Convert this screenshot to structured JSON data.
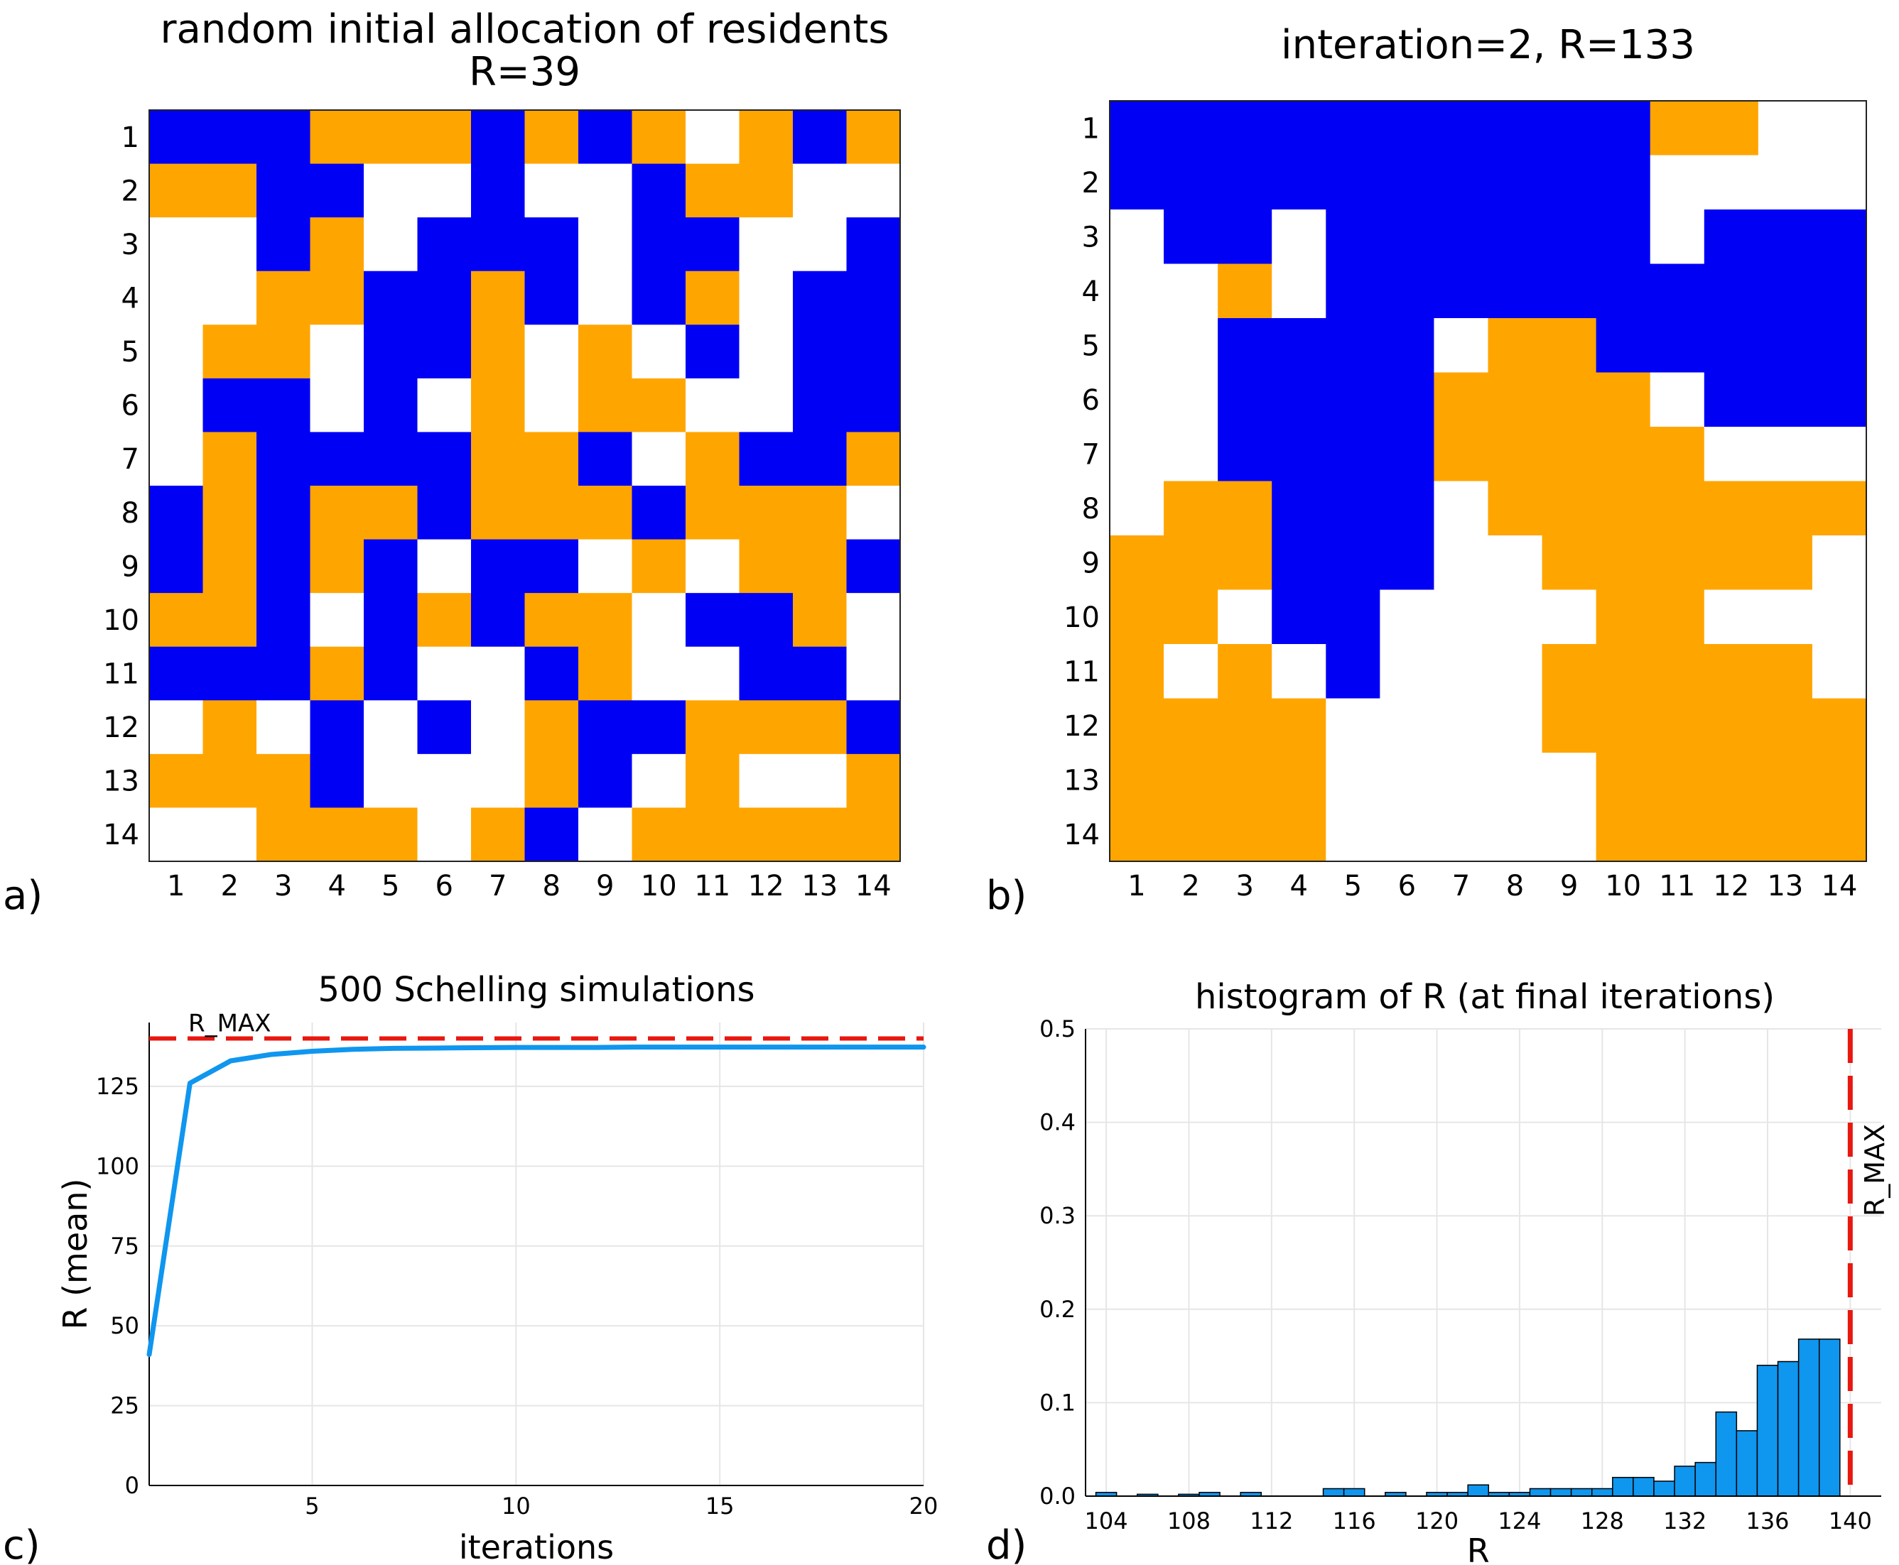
{
  "colors": {
    "empty": "#ffffff",
    "group_a": "#0000f5",
    "group_b": "#ffa500",
    "line": "#0f96ef",
    "rmax": "#e8170f",
    "hist_fill": "#0f96ef",
    "grid": "#e6e6e6"
  },
  "chart_data": [
    {
      "type": "heatmap",
      "panel_label": "a)",
      "title": "random initial allocation of residents",
      "subtitle": "R=39",
      "x_ticks": [
        "1",
        "2",
        "3",
        "4",
        "5",
        "6",
        "7",
        "8",
        "9",
        "10",
        "11",
        "12",
        "13",
        "14"
      ],
      "y_ticks": [
        "1",
        "2",
        "3",
        "4",
        "5",
        "6",
        "7",
        "8",
        "9",
        "10",
        "11",
        "12",
        "13",
        "14"
      ],
      "legend_codes": {
        "0": "empty",
        "1": "blue",
        "2": "orange"
      },
      "grid": [
        [
          1,
          1,
          1,
          2,
          2,
          2,
          1,
          2,
          1,
          2,
          0,
          2,
          1,
          2
        ],
        [
          2,
          2,
          1,
          1,
          0,
          0,
          1,
          0,
          0,
          1,
          2,
          2,
          0,
          0
        ],
        [
          0,
          0,
          1,
          2,
          0,
          1,
          1,
          1,
          0,
          1,
          1,
          0,
          0,
          1
        ],
        [
          0,
          0,
          2,
          2,
          1,
          1,
          2,
          1,
          0,
          1,
          2,
          0,
          1,
          1
        ],
        [
          0,
          2,
          2,
          0,
          1,
          1,
          2,
          0,
          2,
          0,
          1,
          0,
          1,
          1
        ],
        [
          0,
          1,
          1,
          0,
          1,
          0,
          2,
          0,
          2,
          2,
          0,
          0,
          1,
          1
        ],
        [
          0,
          2,
          1,
          1,
          1,
          1,
          2,
          2,
          1,
          0,
          2,
          1,
          1,
          2
        ],
        [
          1,
          2,
          1,
          2,
          2,
          1,
          2,
          2,
          2,
          1,
          2,
          2,
          2,
          0
        ],
        [
          1,
          2,
          1,
          2,
          1,
          0,
          1,
          1,
          0,
          2,
          0,
          2,
          2,
          1
        ],
        [
          2,
          2,
          1,
          0,
          1,
          2,
          1,
          2,
          2,
          0,
          1,
          1,
          2,
          0
        ],
        [
          1,
          1,
          1,
          2,
          1,
          0,
          0,
          1,
          2,
          0,
          0,
          1,
          1,
          0
        ],
        [
          0,
          2,
          0,
          1,
          0,
          1,
          0,
          2,
          1,
          1,
          2,
          2,
          2,
          1
        ],
        [
          2,
          2,
          2,
          1,
          0,
          0,
          0,
          2,
          1,
          0,
          2,
          0,
          0,
          2
        ],
        [
          0,
          0,
          2,
          2,
          2,
          0,
          2,
          1,
          0,
          2,
          2,
          2,
          2,
          2
        ]
      ]
    },
    {
      "type": "heatmap",
      "panel_label": "b)",
      "title": "interation=2, R=133",
      "x_ticks": [
        "1",
        "2",
        "3",
        "4",
        "5",
        "6",
        "7",
        "8",
        "9",
        "10",
        "11",
        "12",
        "13",
        "14"
      ],
      "y_ticks": [
        "1",
        "2",
        "3",
        "4",
        "5",
        "6",
        "7",
        "8",
        "9",
        "10",
        "11",
        "12",
        "13",
        "14"
      ],
      "legend_codes": {
        "0": "empty",
        "1": "blue",
        "2": "orange"
      },
      "grid": [
        [
          1,
          1,
          1,
          1,
          1,
          1,
          1,
          1,
          1,
          1,
          2,
          2,
          0,
          0
        ],
        [
          1,
          1,
          1,
          1,
          1,
          1,
          1,
          1,
          1,
          1,
          0,
          0,
          0,
          0
        ],
        [
          0,
          1,
          1,
          0,
          1,
          1,
          1,
          1,
          1,
          1,
          0,
          1,
          1,
          1
        ],
        [
          0,
          0,
          2,
          0,
          1,
          1,
          1,
          1,
          1,
          1,
          1,
          1,
          1,
          1
        ],
        [
          0,
          0,
          1,
          1,
          1,
          1,
          0,
          2,
          2,
          1,
          1,
          1,
          1,
          1
        ],
        [
          0,
          0,
          1,
          1,
          1,
          1,
          2,
          2,
          2,
          2,
          0,
          1,
          1,
          1
        ],
        [
          0,
          0,
          1,
          1,
          1,
          1,
          2,
          2,
          2,
          2,
          2,
          0,
          0,
          0
        ],
        [
          0,
          2,
          2,
          1,
          1,
          1,
          0,
          2,
          2,
          2,
          2,
          2,
          2,
          2
        ],
        [
          2,
          2,
          2,
          1,
          1,
          1,
          0,
          0,
          2,
          2,
          2,
          2,
          2,
          0
        ],
        [
          2,
          2,
          0,
          1,
          1,
          0,
          0,
          0,
          0,
          2,
          2,
          0,
          0,
          0
        ],
        [
          2,
          0,
          2,
          0,
          1,
          0,
          0,
          0,
          2,
          2,
          2,
          2,
          2,
          0
        ],
        [
          2,
          2,
          2,
          2,
          0,
          0,
          0,
          0,
          2,
          2,
          2,
          2,
          2,
          2
        ],
        [
          2,
          2,
          2,
          2,
          0,
          0,
          0,
          0,
          0,
          2,
          2,
          2,
          2,
          2
        ],
        [
          2,
          2,
          2,
          2,
          0,
          0,
          0,
          0,
          0,
          2,
          2,
          2,
          2,
          2
        ]
      ]
    },
    {
      "type": "line",
      "panel_label": "c)",
      "title": "500 Schelling simulations",
      "xlabel": "iterations",
      "ylabel": "R (mean)",
      "xlim": [
        1,
        20
      ],
      "ylim": [
        0,
        145
      ],
      "x_ticks": [
        5,
        10,
        15,
        20
      ],
      "y_ticks": [
        0,
        25,
        50,
        75,
        100,
        125
      ],
      "grid": true,
      "series": [
        {
          "x": [
            1,
            2,
            3,
            4,
            5,
            6,
            7,
            8,
            9,
            10,
            11,
            12,
            13,
            14,
            15,
            16,
            17,
            18,
            19,
            20
          ],
          "values": [
            41,
            126,
            133,
            135,
            136,
            136.6,
            136.9,
            137.0,
            137.1,
            137.2,
            137.2,
            137.2,
            137.3,
            137.3,
            137.3,
            137.3,
            137.3,
            137.3,
            137.3,
            137.3
          ]
        }
      ],
      "reference_line": {
        "label": "R_MAX",
        "value": 140,
        "style": "dashed"
      }
    },
    {
      "type": "bar",
      "panel_label": "d)",
      "title": "histogram of R (at final iterations)",
      "xlabel": "R",
      "xlim": [
        104,
        140
      ],
      "ylim": [
        0,
        0.5
      ],
      "x_ticks": [
        104,
        108,
        112,
        116,
        120,
        124,
        128,
        132,
        136,
        140
      ],
      "y_ticks": [
        "0.0",
        "0.1",
        "0.2",
        "0.3",
        "0.4",
        "0.5"
      ],
      "grid": true,
      "bin_width": 1,
      "bins": [
        {
          "x": 104,
          "value": 0.004
        },
        {
          "x": 106,
          "value": 0.002
        },
        {
          "x": 108,
          "value": 0.002
        },
        {
          "x": 109,
          "value": 0.004
        },
        {
          "x": 111,
          "value": 0.004
        },
        {
          "x": 115,
          "value": 0.008
        },
        {
          "x": 116,
          "value": 0.008
        },
        {
          "x": 118,
          "value": 0.004
        },
        {
          "x": 120,
          "value": 0.004
        },
        {
          "x": 121,
          "value": 0.004
        },
        {
          "x": 122,
          "value": 0.012
        },
        {
          "x": 123,
          "value": 0.004
        },
        {
          "x": 124,
          "value": 0.004
        },
        {
          "x": 125,
          "value": 0.008
        },
        {
          "x": 126,
          "value": 0.008
        },
        {
          "x": 127,
          "value": 0.008
        },
        {
          "x": 128,
          "value": 0.008
        },
        {
          "x": 129,
          "value": 0.02
        },
        {
          "x": 130,
          "value": 0.02
        },
        {
          "x": 131,
          "value": 0.016
        },
        {
          "x": 132,
          "value": 0.032
        },
        {
          "x": 133,
          "value": 0.036
        },
        {
          "x": 134,
          "value": 0.09
        },
        {
          "x": 135,
          "value": 0.07
        },
        {
          "x": 136,
          "value": 0.14
        },
        {
          "x": 137,
          "value": 0.144
        },
        {
          "x": 138,
          "value": 0.168
        },
        {
          "x": 139,
          "value": 0.168
        }
      ],
      "reference_line": {
        "label": "R_MAX",
        "value": 140,
        "style": "dashed"
      }
    }
  ]
}
